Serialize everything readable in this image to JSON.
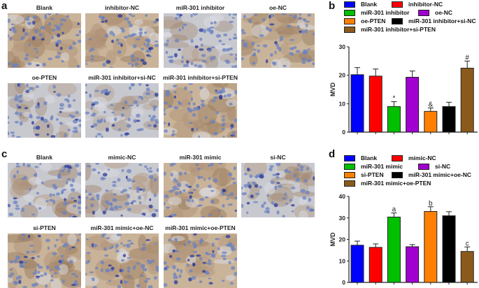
{
  "panels": {
    "a": {
      "letter": "a",
      "tiles": [
        {
          "label": "Blank"
        },
        {
          "label": "inhibitor-NC"
        },
        {
          "label": "miR-301 inhibitor"
        },
        {
          "label": "oe-NC"
        },
        {
          "label": "oe-PTEN"
        },
        {
          "label": "miR-301 inhibitor+si-NC"
        },
        {
          "label": "miR-301 inhibitor+si-PTEN"
        }
      ]
    },
    "b": {
      "letter": "b"
    },
    "c": {
      "letter": "c",
      "tiles": [
        {
          "label": "Blank"
        },
        {
          "label": "mimic-NC"
        },
        {
          "label": "miR-301 mimic"
        },
        {
          "label": "si-NC"
        },
        {
          "label": "si-PTEN"
        },
        {
          "label": "miR-301 mimic+oe-NC"
        },
        {
          "label": "miR-301 mimic+oe-PTEN"
        }
      ]
    },
    "d": {
      "letter": "d"
    }
  },
  "chart_data": [
    {
      "panel": "b",
      "type": "bar",
      "title": "",
      "xlabel": "",
      "ylabel": "MVD",
      "ylim": [
        0,
        30
      ],
      "yticks": [
        0,
        10,
        20,
        30
      ],
      "legend_position": "top",
      "categories": [
        "Blank",
        "inhibitor-NC",
        "miR-301 inhibitor",
        "oe-NC",
        "oe-PTEN",
        "miR-301 inhibitor+si-NC",
        "miR-301 inhibitor+si-PTEN"
      ],
      "colors": [
        "#0000ff",
        "#ff0000",
        "#00c000",
        "#a000d0",
        "#ff8000",
        "#000000",
        "#8b5a1a"
      ],
      "values": [
        20.2,
        19.7,
        9.0,
        19.3,
        7.3,
        9.0,
        22.5
      ],
      "error_upper": [
        22.7,
        22.2,
        10.7,
        21.5,
        8.5,
        10.5,
        25.0
      ],
      "annotations": [
        "",
        "",
        "*",
        "",
        "&",
        "",
        "#"
      ]
    },
    {
      "panel": "d",
      "type": "bar",
      "title": "",
      "xlabel": "",
      "ylabel": "MVD",
      "ylim": [
        0,
        40
      ],
      "yticks": [
        0,
        10,
        20,
        30,
        40
      ],
      "legend_position": "top",
      "categories": [
        "Blank",
        "mimic-NC",
        "miR-301 mimic",
        "si-NC",
        "si-PTEN",
        "miR-301 mimic+oe-NC",
        "miR-301 mimic+oe-PTEN"
      ],
      "colors": [
        "#0000ff",
        "#ff0000",
        "#00c000",
        "#a000d0",
        "#ff8000",
        "#000000",
        "#8b5a1a"
      ],
      "values": [
        17.3,
        16.3,
        30.4,
        16.6,
        33.0,
        31.0,
        14.4
      ],
      "error_upper": [
        19.2,
        17.9,
        32.3,
        17.6,
        35.2,
        32.9,
        16.5
      ],
      "annotations": [
        "",
        "",
        "a",
        "",
        "b",
        "",
        "c"
      ]
    }
  ]
}
